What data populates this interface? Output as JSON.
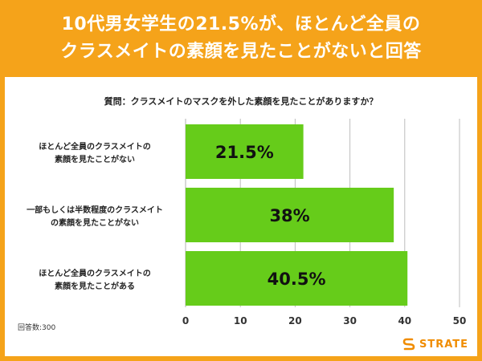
{
  "header": {
    "line1": "10代男女学生の21.5%が、ほとんど全員の",
    "line2": "クラスメイトの素顔を見たことがないと回答"
  },
  "colors": {
    "frame": "#f5a31a",
    "bar": "#66cc1a",
    "grid": "#bdbdbd"
  },
  "footnote": "回答数:300",
  "logo": {
    "text": "STRATE",
    "icon": "logo-s-mark-icon"
  },
  "chart_data": {
    "type": "bar",
    "orientation": "horizontal",
    "title": "質問：クラスメイトのマスクを外した素顔を見たことがありますか？",
    "categories": [
      [
        "ほとんど全員のクラスメイトの",
        "素顔を見たことがない"
      ],
      [
        "一部もしくは半数程度のクラスメイト",
        "の素顔を見たことがない"
      ],
      [
        "ほとんど全員のクラスメイトの",
        "素顔を見たことがある"
      ]
    ],
    "values": [
      21.5,
      38,
      40.5
    ],
    "value_labels": [
      "21.5%",
      "38%",
      "40.5%"
    ],
    "xlim": [
      0,
      50
    ],
    "xticks": [
      0,
      10,
      20,
      30,
      40,
      50
    ],
    "grid": true
  }
}
